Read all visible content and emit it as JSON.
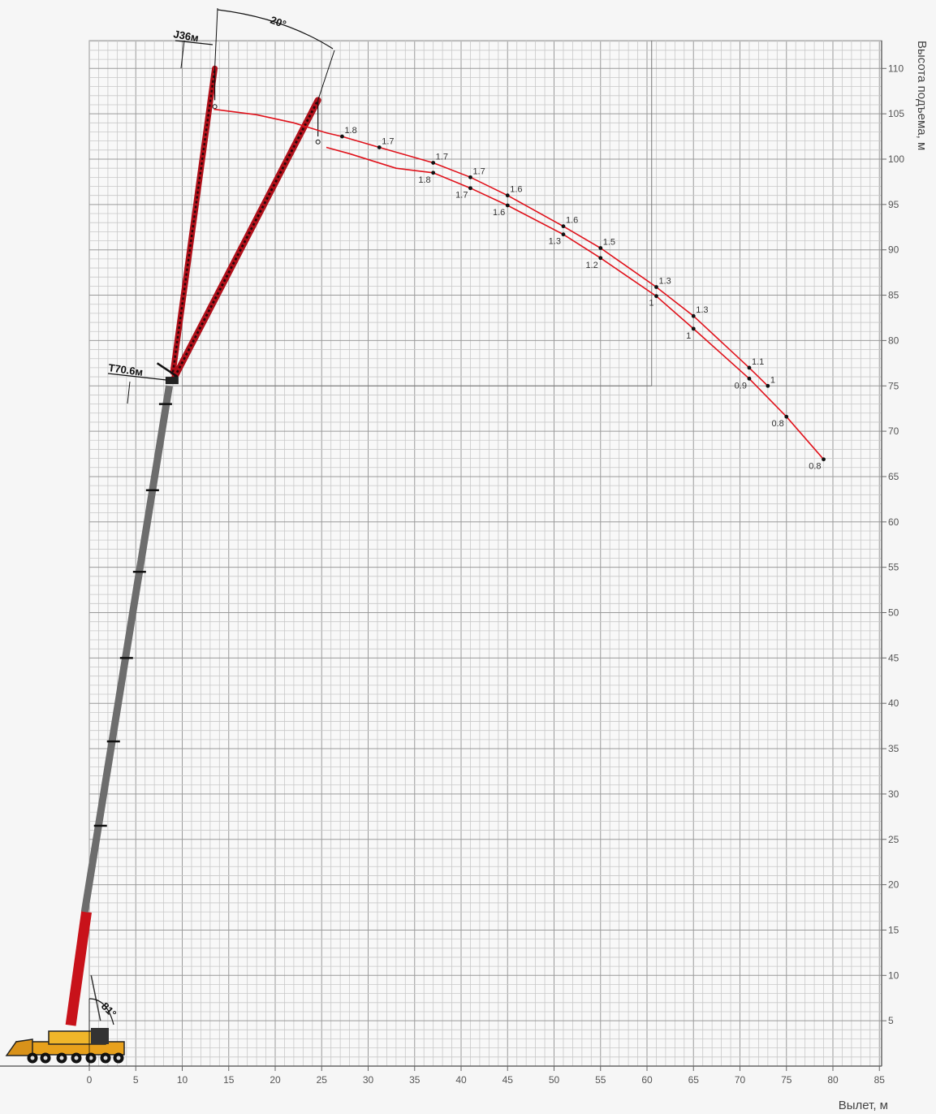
{
  "chart_data": {
    "type": "line",
    "xlabel": "Вылет, м",
    "ylabel": "Высота подъема, м",
    "xlim": [
      0,
      85
    ],
    "ylim": [
      0,
      110
    ],
    "x_ticks": [
      "0",
      "5",
      "10",
      "15",
      "20",
      "25",
      "30",
      "35",
      "40",
      "45",
      "50",
      "55",
      "60",
      "65",
      "70",
      "75",
      "80",
      "85"
    ],
    "y_ticks": [
      "5",
      "10",
      "15",
      "20",
      "25",
      "30",
      "35",
      "40",
      "45",
      "50",
      "55",
      "60",
      "65",
      "70",
      "75",
      "80",
      "85",
      "90",
      "95",
      "100",
      "105",
      "110"
    ],
    "grid": true,
    "boom_angle_label": "81°",
    "jib_angle_label": "20°",
    "main_boom_label": "T70.6м",
    "jib_length_label": "J36м",
    "curve_color": "#e0121b",
    "series": [
      {
        "line": [
          [
            13.4,
            105.5
          ],
          [
            18,
            104.9
          ],
          [
            22,
            104.0
          ],
          [
            25.5,
            102.9
          ],
          [
            27.2,
            102.5
          ],
          [
            31.2,
            101.3
          ],
          [
            37,
            99.6
          ],
          [
            41,
            98.0
          ],
          [
            45,
            96.0
          ],
          [
            51,
            92.6
          ],
          [
            55,
            90.2
          ],
          [
            61,
            85.9
          ],
          [
            65,
            82.7
          ],
          [
            71,
            77.0
          ],
          [
            73,
            75.0
          ]
        ],
        "points": [
          {
            "x": 27.2,
            "y": 102.5,
            "label": "1.8"
          },
          {
            "x": 31.2,
            "y": 101.3,
            "label": "1.7"
          },
          {
            "x": 37,
            "y": 99.6,
            "label": "1.7"
          },
          {
            "x": 41,
            "y": 98.0,
            "label": "1.7"
          },
          {
            "x": 45,
            "y": 96.0,
            "label": "1.6"
          },
          {
            "x": 51,
            "y": 92.6,
            "label": "1.6"
          },
          {
            "x": 55,
            "y": 90.2,
            "label": "1.5"
          },
          {
            "x": 61,
            "y": 85.9,
            "label": "1.3"
          },
          {
            "x": 65,
            "y": 82.7,
            "label": "1.3"
          },
          {
            "x": 71,
            "y": 77.0,
            "label": "1.1"
          },
          {
            "x": 73,
            "y": 75.0,
            "label": "1"
          }
        ]
      },
      {
        "line": [
          [
            25.5,
            101.3
          ],
          [
            28,
            100.6
          ],
          [
            33,
            99.0
          ],
          [
            37,
            98.5
          ],
          [
            41,
            96.8
          ],
          [
            45,
            94.9
          ],
          [
            51,
            91.7
          ],
          [
            55,
            89.1
          ],
          [
            61,
            84.9
          ],
          [
            65,
            81.3
          ],
          [
            71,
            75.8
          ],
          [
            75,
            71.6
          ],
          [
            79,
            66.9
          ]
        ],
        "points": [
          {
            "x": 37,
            "y": 98.5,
            "label": "1.8"
          },
          {
            "x": 41,
            "y": 96.8,
            "label": "1.7"
          },
          {
            "x": 45,
            "y": 94.9,
            "label": "1.6"
          },
          {
            "x": 51,
            "y": 91.7,
            "label": "1.3"
          },
          {
            "x": 55,
            "y": 89.1,
            "label": "1.2"
          },
          {
            "x": 61,
            "y": 84.9,
            "label": "1"
          },
          {
            "x": 65,
            "y": 81.3,
            "label": "1"
          },
          {
            "x": 71,
            "y": 75.8,
            "label": "0.9"
          },
          {
            "x": 75,
            "y": 71.6,
            "label": "0.8"
          },
          {
            "x": 79,
            "y": 66.9,
            "label": "0.8"
          }
        ]
      }
    ]
  }
}
